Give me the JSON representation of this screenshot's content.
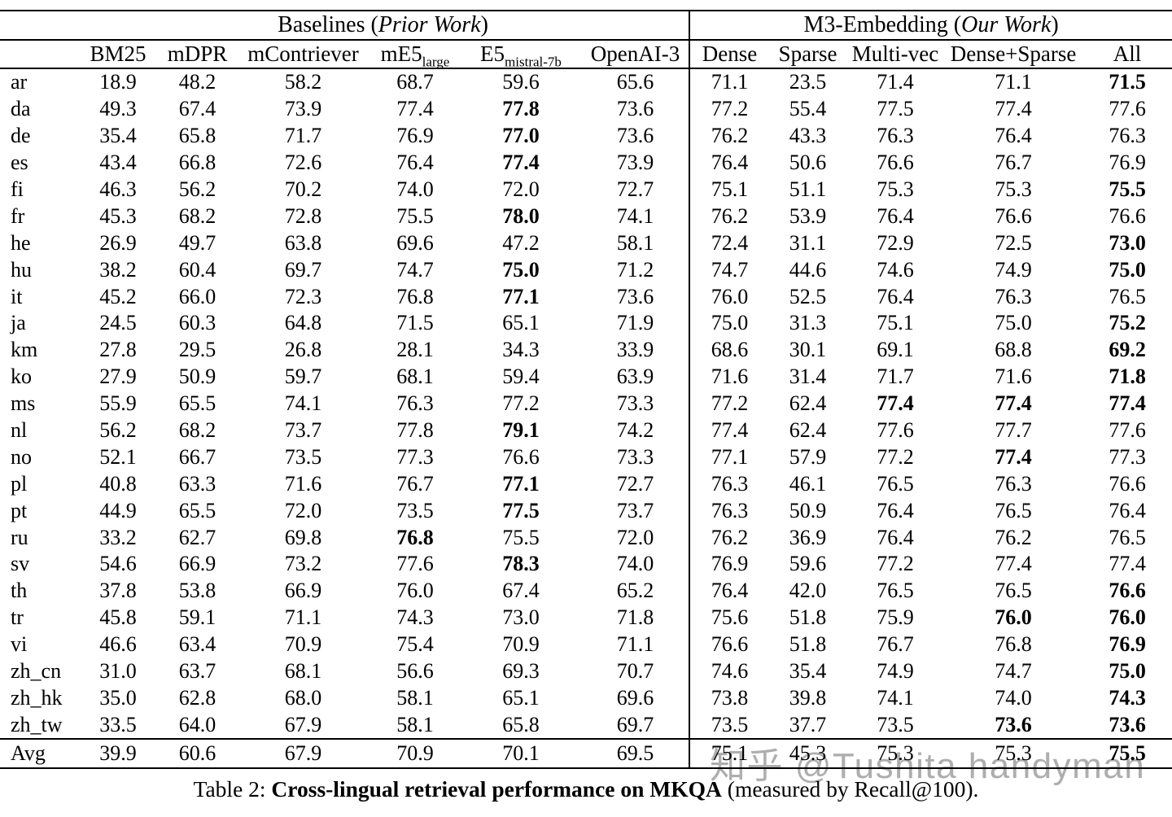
{
  "header": {
    "groups": {
      "baselines": {
        "pre": "Baselines (",
        "italic": "Prior Work",
        "post": ")"
      },
      "m3": {
        "pre": "M3-Embedding (",
        "italic": "Our Work",
        "post": ")"
      }
    },
    "columns": {
      "corner": "",
      "bm25": "BM25",
      "mdpr": "mDPR",
      "mcontriever": "mContriever",
      "me5": {
        "main": "mE5",
        "sub": "large"
      },
      "e5": {
        "main": "E5",
        "sub": "mistral-7b"
      },
      "openai": "OpenAI-3",
      "dense": "Dense",
      "sparse": "Sparse",
      "multivec": "Multi-vec",
      "densesparse": "Dense+Sparse",
      "all": "All"
    }
  },
  "table": {
    "bold_rule": "row-maximum values are bold",
    "rows": [
      {
        "label": "ar",
        "values": [
          "18.9",
          "48.2",
          "58.2",
          "68.7",
          "59.6",
          "65.6",
          "71.1",
          "23.5",
          "71.4",
          "71.1",
          "71.5"
        ]
      },
      {
        "label": "da",
        "values": [
          "49.3",
          "67.4",
          "73.9",
          "77.4",
          "77.8",
          "73.6",
          "77.2",
          "55.4",
          "77.5",
          "77.4",
          "77.6"
        ]
      },
      {
        "label": "de",
        "values": [
          "35.4",
          "65.8",
          "71.7",
          "76.9",
          "77.0",
          "73.6",
          "76.2",
          "43.3",
          "76.3",
          "76.4",
          "76.3"
        ]
      },
      {
        "label": "es",
        "values": [
          "43.4",
          "66.8",
          "72.6",
          "76.4",
          "77.4",
          "73.9",
          "76.4",
          "50.6",
          "76.6",
          "76.7",
          "76.9"
        ]
      },
      {
        "label": "fi",
        "values": [
          "46.3",
          "56.2",
          "70.2",
          "74.0",
          "72.0",
          "72.7",
          "75.1",
          "51.1",
          "75.3",
          "75.3",
          "75.5"
        ]
      },
      {
        "label": "fr",
        "values": [
          "45.3",
          "68.2",
          "72.8",
          "75.5",
          "78.0",
          "74.1",
          "76.2",
          "53.9",
          "76.4",
          "76.6",
          "76.6"
        ]
      },
      {
        "label": "he",
        "values": [
          "26.9",
          "49.7",
          "63.8",
          "69.6",
          "47.2",
          "58.1",
          "72.4",
          "31.1",
          "72.9",
          "72.5",
          "73.0"
        ]
      },
      {
        "label": "hu",
        "values": [
          "38.2",
          "60.4",
          "69.7",
          "74.7",
          "75.0",
          "71.2",
          "74.7",
          "44.6",
          "74.6",
          "74.9",
          "75.0"
        ]
      },
      {
        "label": "it",
        "values": [
          "45.2",
          "66.0",
          "72.3",
          "76.8",
          "77.1",
          "73.6",
          "76.0",
          "52.5",
          "76.4",
          "76.3",
          "76.5"
        ]
      },
      {
        "label": "ja",
        "values": [
          "24.5",
          "60.3",
          "64.8",
          "71.5",
          "65.1",
          "71.9",
          "75.0",
          "31.3",
          "75.1",
          "75.0",
          "75.2"
        ]
      },
      {
        "label": "km",
        "values": [
          "27.8",
          "29.5",
          "26.8",
          "28.1",
          "34.3",
          "33.9",
          "68.6",
          "30.1",
          "69.1",
          "68.8",
          "69.2"
        ]
      },
      {
        "label": "ko",
        "values": [
          "27.9",
          "50.9",
          "59.7",
          "68.1",
          "59.4",
          "63.9",
          "71.6",
          "31.4",
          "71.7",
          "71.6",
          "71.8"
        ]
      },
      {
        "label": "ms",
        "values": [
          "55.9",
          "65.5",
          "74.1",
          "76.3",
          "77.2",
          "73.3",
          "77.2",
          "62.4",
          "77.4",
          "77.4",
          "77.4"
        ]
      },
      {
        "label": "nl",
        "values": [
          "56.2",
          "68.2",
          "73.7",
          "77.8",
          "79.1",
          "74.2",
          "77.4",
          "62.4",
          "77.6",
          "77.7",
          "77.6"
        ]
      },
      {
        "label": "no",
        "values": [
          "52.1",
          "66.7",
          "73.5",
          "77.3",
          "76.6",
          "73.3",
          "77.1",
          "57.9",
          "77.2",
          "77.4",
          "77.3"
        ]
      },
      {
        "label": "pl",
        "values": [
          "40.8",
          "63.3",
          "71.6",
          "76.7",
          "77.1",
          "72.7",
          "76.3",
          "46.1",
          "76.5",
          "76.3",
          "76.6"
        ]
      },
      {
        "label": "pt",
        "values": [
          "44.9",
          "65.5",
          "72.0",
          "73.5",
          "77.5",
          "73.7",
          "76.3",
          "50.9",
          "76.4",
          "76.5",
          "76.4"
        ]
      },
      {
        "label": "ru",
        "values": [
          "33.2",
          "62.7",
          "69.8",
          "76.8",
          "75.5",
          "72.0",
          "76.2",
          "36.9",
          "76.4",
          "76.2",
          "76.5"
        ]
      },
      {
        "label": "sv",
        "values": [
          "54.6",
          "66.9",
          "73.2",
          "77.6",
          "78.3",
          "74.0",
          "76.9",
          "59.6",
          "77.2",
          "77.4",
          "77.4"
        ]
      },
      {
        "label": "th",
        "values": [
          "37.8",
          "53.8",
          "66.9",
          "76.0",
          "67.4",
          "65.2",
          "76.4",
          "42.0",
          "76.5",
          "76.5",
          "76.6"
        ]
      },
      {
        "label": "tr",
        "values": [
          "45.8",
          "59.1",
          "71.1",
          "74.3",
          "73.0",
          "71.8",
          "75.6",
          "51.8",
          "75.9",
          "76.0",
          "76.0"
        ]
      },
      {
        "label": "vi",
        "values": [
          "46.6",
          "63.4",
          "70.9",
          "75.4",
          "70.9",
          "71.1",
          "76.6",
          "51.8",
          "76.7",
          "76.8",
          "76.9"
        ]
      },
      {
        "label": "zh_cn",
        "values": [
          "31.0",
          "63.7",
          "68.1",
          "56.6",
          "69.3",
          "70.7",
          "74.6",
          "35.4",
          "74.9",
          "74.7",
          "75.0"
        ]
      },
      {
        "label": "zh_hk",
        "values": [
          "35.0",
          "62.8",
          "68.0",
          "58.1",
          "65.1",
          "69.6",
          "73.8",
          "39.8",
          "74.1",
          "74.0",
          "74.3"
        ]
      },
      {
        "label": "zh_tw",
        "values": [
          "33.5",
          "64.0",
          "67.9",
          "58.1",
          "65.8",
          "69.7",
          "73.5",
          "37.7",
          "73.5",
          "73.6",
          "73.6"
        ]
      },
      {
        "label": "Avg",
        "values": [
          "39.9",
          "60.6",
          "67.9",
          "70.9",
          "70.1",
          "69.5",
          "75.1",
          "45.3",
          "75.3",
          "75.3",
          "75.5"
        ]
      }
    ]
  },
  "caption": {
    "prefix": "Table 2: ",
    "bold": "Cross-lingual retrieval performance on MKQA",
    "suffix": " (measured by Recall@100)."
  },
  "watermark": {
    "text": "知乎 @Tushita handyman",
    "color": "#aeaeae"
  }
}
